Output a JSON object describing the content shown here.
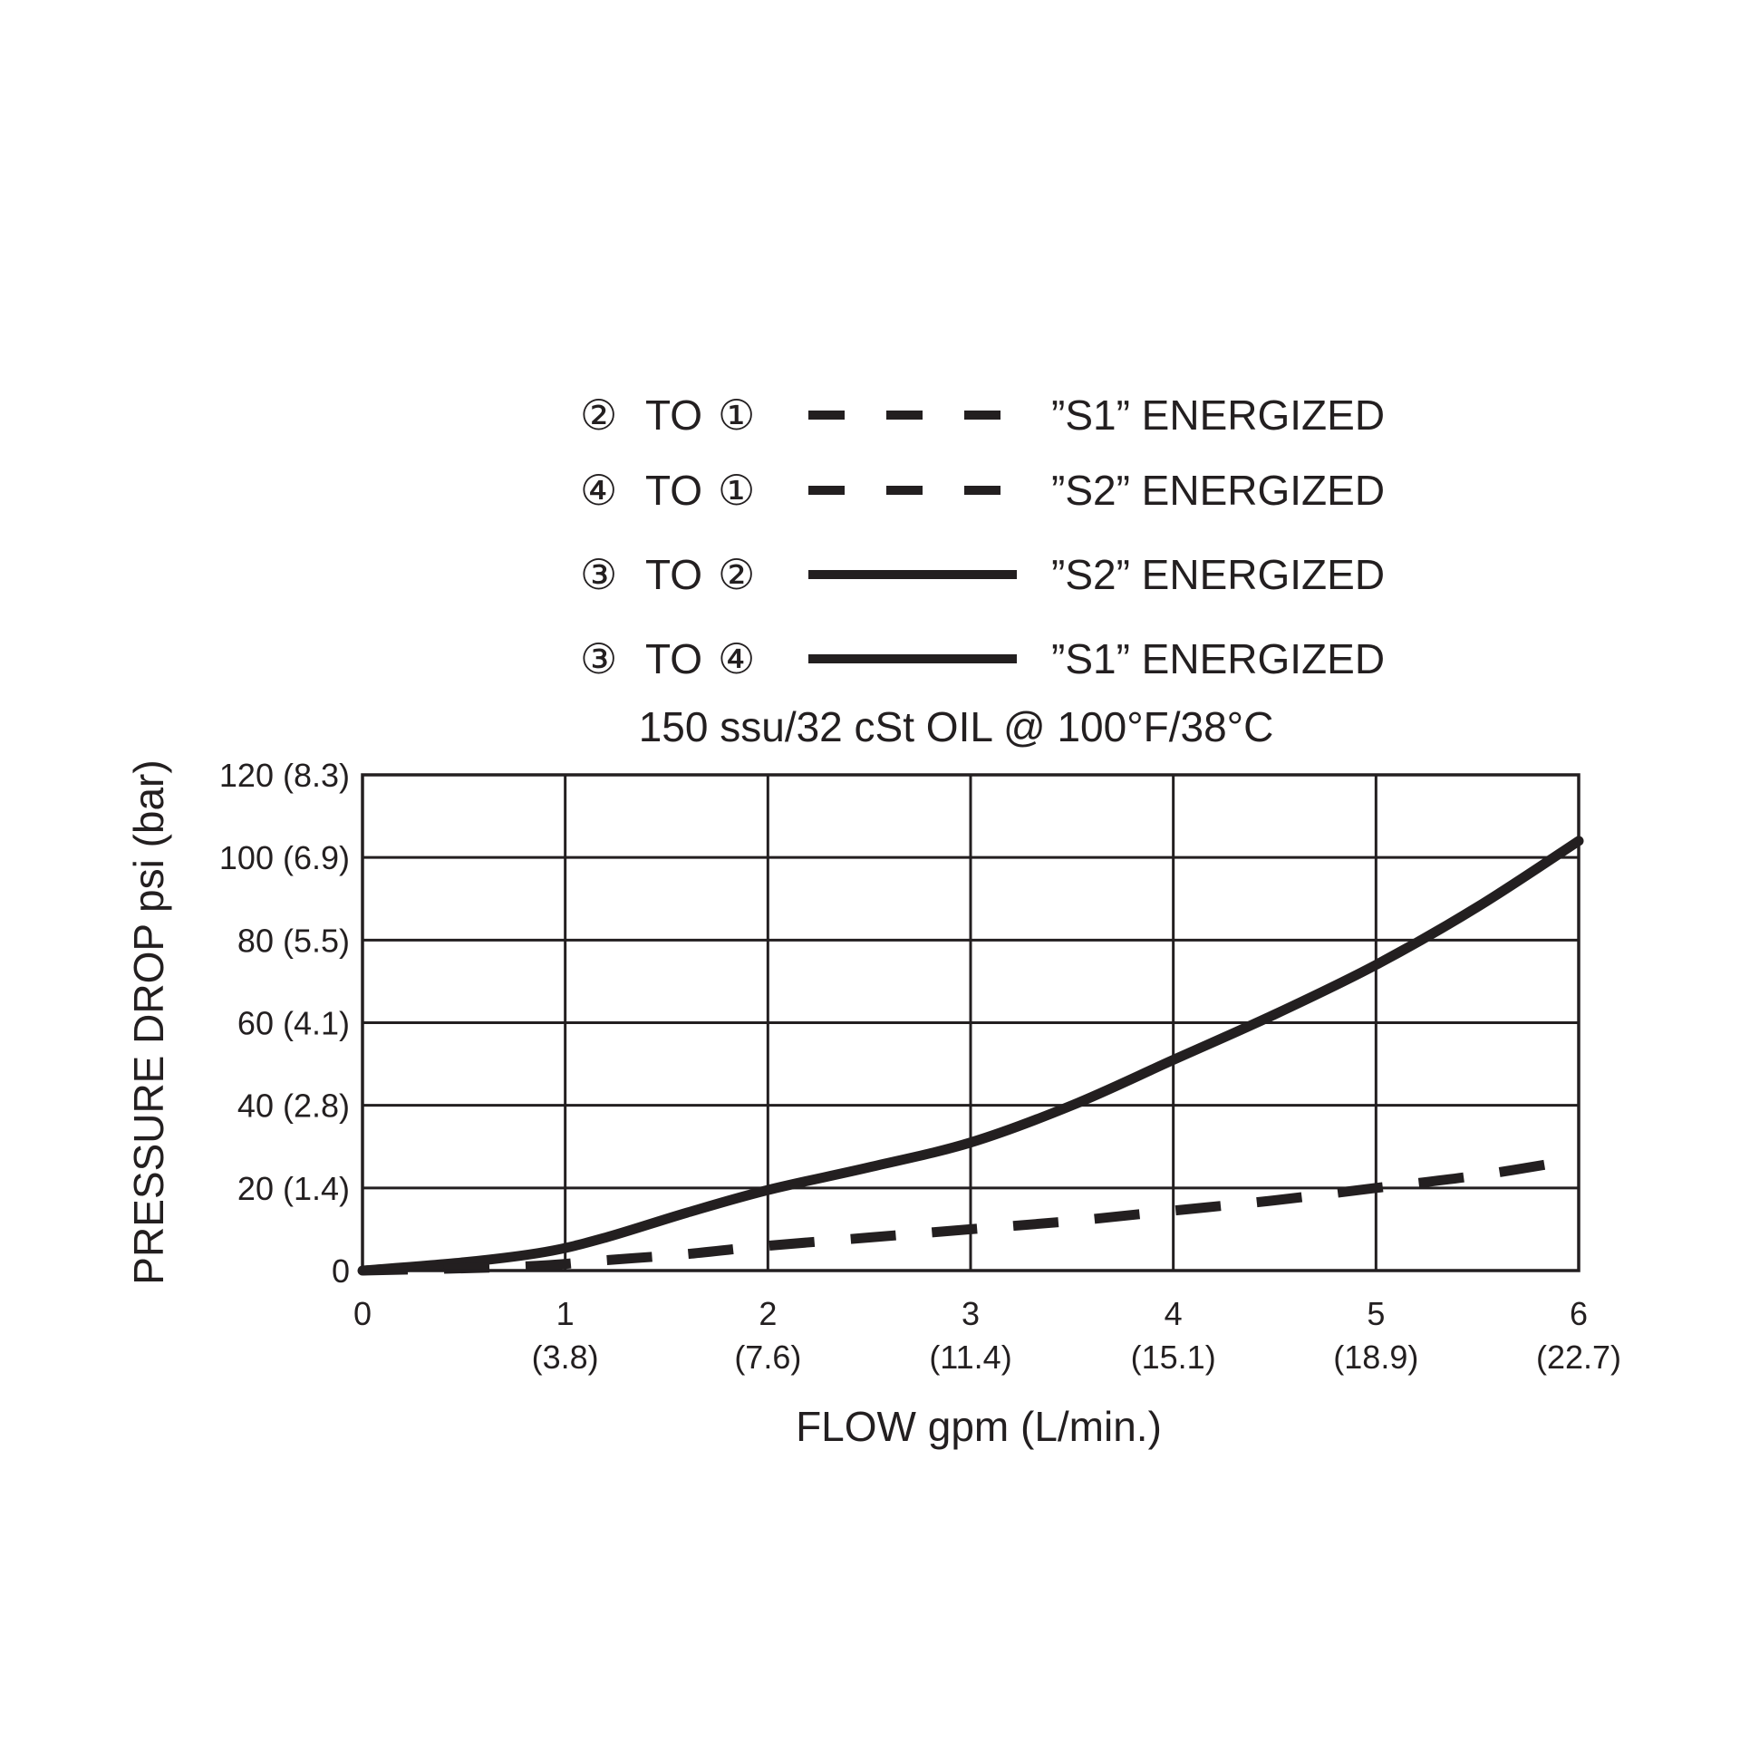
{
  "chart_data": {
    "type": "line",
    "subtitle": "150 ssu/32 cSt OIL @ 100°F/38°C",
    "xlabel": "FLOW gpm (L/min.)",
    "ylabel": "PRESSURE DROP psi (bar)",
    "xlim": [
      0,
      6
    ],
    "ylim": [
      0,
      120
    ],
    "grid": true,
    "x_ticks": [
      {
        "value": 0,
        "label": "0",
        "sublabel": ""
      },
      {
        "value": 1,
        "label": "1",
        "sublabel": "(3.8)"
      },
      {
        "value": 2,
        "label": "2",
        "sublabel": "(7.6)"
      },
      {
        "value": 3,
        "label": "3",
        "sublabel": "(11.4)"
      },
      {
        "value": 4,
        "label": "4",
        "sublabel": "(15.1)"
      },
      {
        "value": 5,
        "label": "5",
        "sublabel": "(18.9)"
      },
      {
        "value": 6,
        "label": "6",
        "sublabel": "(22.7)"
      }
    ],
    "y_ticks": [
      {
        "value": 0,
        "label": "0"
      },
      {
        "value": 20,
        "label": "20 (1.4)"
      },
      {
        "value": 40,
        "label": "40 (2.8)"
      },
      {
        "value": 60,
        "label": "60 (4.1)"
      },
      {
        "value": 80,
        "label": "80 (5.5)"
      },
      {
        "value": 100,
        "label": "100 (6.9)"
      },
      {
        "value": 120,
        "label": "120 (8.3)"
      }
    ],
    "legend_position": "top",
    "legend": [
      {
        "from": "②",
        "to_word": "TO",
        "to": "①",
        "style": "dashed",
        "label": "”S1” ENERGIZED"
      },
      {
        "from": "④",
        "to_word": "TO",
        "to": "①",
        "style": "dashed",
        "label": "”S2” ENERGIZED"
      },
      {
        "from": "③",
        "to_word": "TO",
        "to": "②",
        "style": "solid",
        "label": "”S2” ENERGIZED"
      },
      {
        "from": "③",
        "to_word": "TO",
        "to": "④",
        "style": "solid",
        "label": "”S1” ENERGIZED"
      }
    ],
    "series": [
      {
        "style": "solid",
        "x": [
          0,
          0.5,
          0.9,
          1.2,
          1.6,
          2.0,
          2.5,
          3.0,
          3.5,
          4.0,
          4.5,
          5.0,
          5.5,
          6.0
        ],
        "y": [
          0,
          2,
          4.5,
          8,
          14,
          19.5,
          25,
          31,
          40,
          51,
          62,
          74,
          88,
          104
        ]
      },
      {
        "style": "dashed",
        "x": [
          0,
          0.8,
          1.2,
          1.6,
          2.0,
          2.5,
          3.0,
          3.5,
          4.0,
          4.5,
          5.0,
          5.5,
          6.0
        ],
        "y": [
          0,
          1,
          2.5,
          4,
          6,
          8,
          10,
          12,
          14.5,
          17,
          20,
          23,
          27
        ]
      }
    ]
  }
}
